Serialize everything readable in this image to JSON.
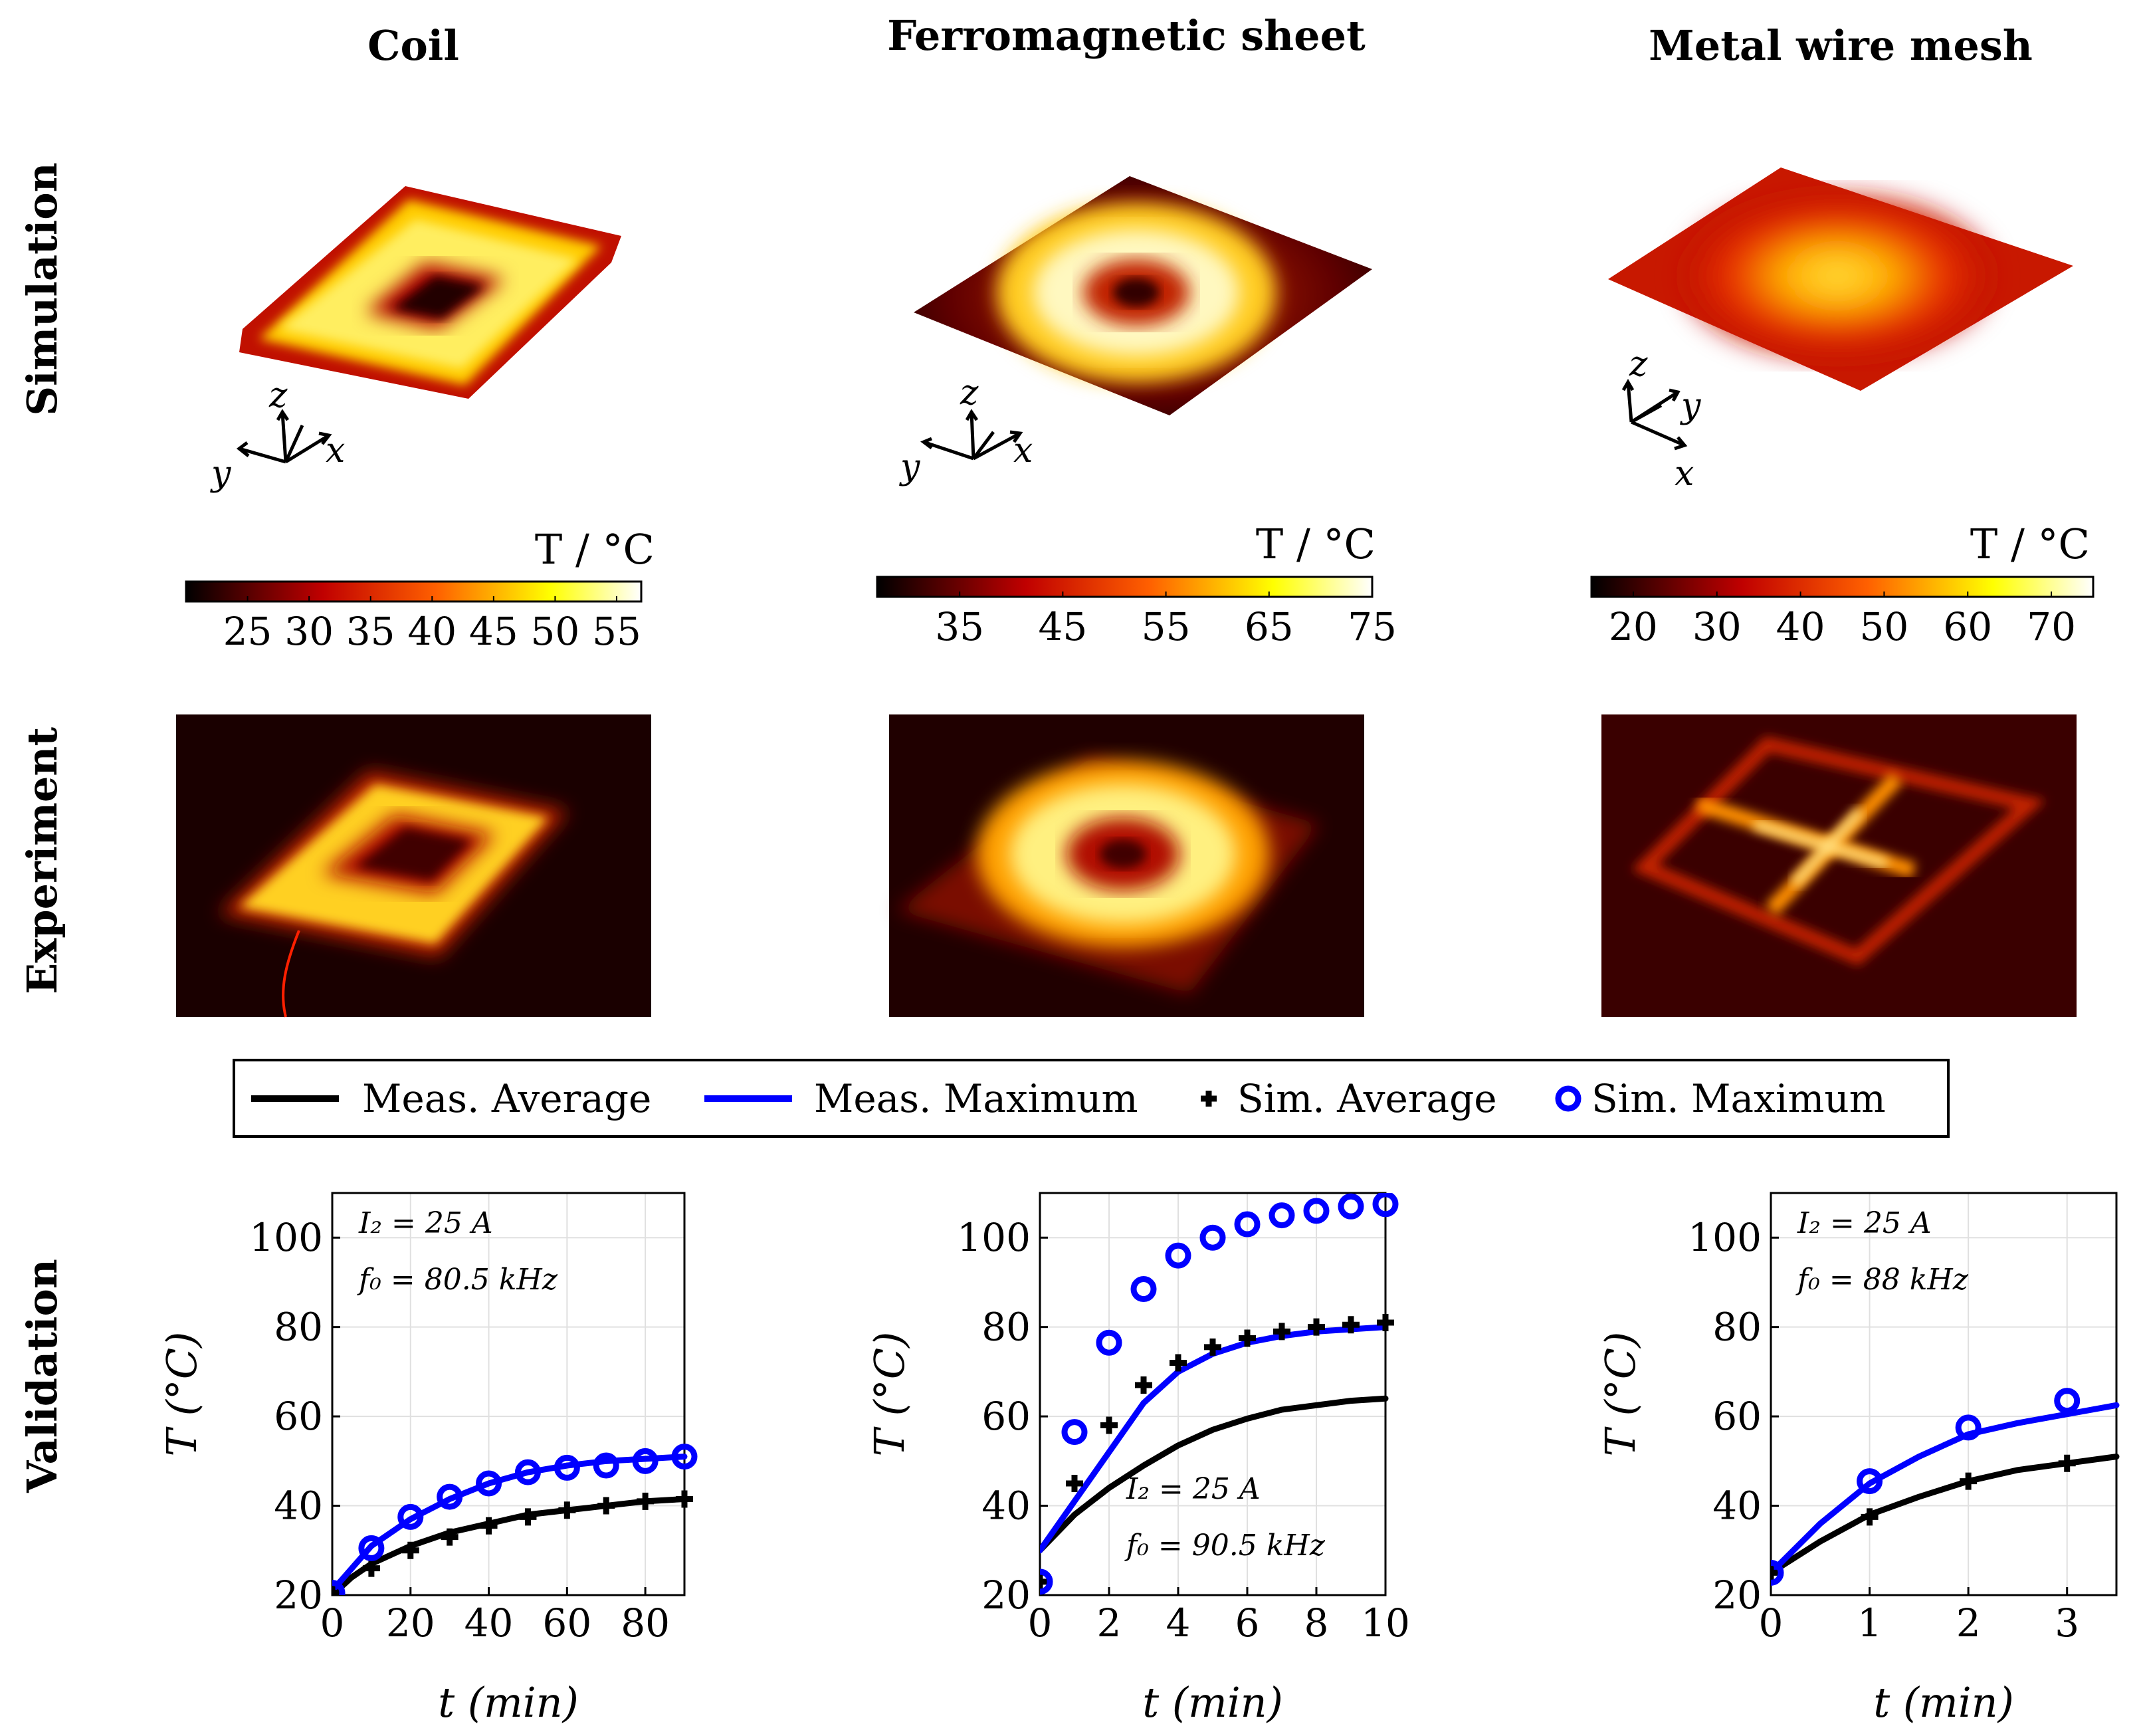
{
  "columns": {
    "coil": "Coil",
    "ferro": "Ferromagnetic sheet",
    "mesh": "Metal wire mesh"
  },
  "rows": {
    "simulation": "Simulation",
    "experiment": "Experiment",
    "validation": "Validation"
  },
  "axis_letters": {
    "x": "x",
    "y": "y",
    "z": "z"
  },
  "colorbars": [
    {
      "title": "T / °C",
      "ticks": [
        "25",
        "30",
        "35",
        "40",
        "45",
        "50",
        "55"
      ],
      "range": [
        20,
        57
      ]
    },
    {
      "title": "T / °C",
      "ticks": [
        "35",
        "45",
        "55",
        "65",
        "75"
      ],
      "range": [
        27,
        75
      ]
    },
    {
      "title": "T / °C",
      "ticks": [
        "20",
        "30",
        "40",
        "50",
        "60",
        "70"
      ],
      "range": [
        15,
        75
      ]
    }
  ],
  "legend": {
    "meas_avg": "Meas. Average",
    "meas_max": "Meas. Maximum",
    "sim_avg": "Sim. Average",
    "sim_max": "Sim. Maximum"
  },
  "colors": {
    "black": "#000000",
    "blue": "#0000ff"
  },
  "chart_data": [
    {
      "type": "line",
      "title": "Coil",
      "xlabel": "t (min)",
      "ylabel": "T (°C)",
      "xlim": [
        0,
        90
      ],
      "ylim": [
        20,
        110
      ],
      "xticks": [
        0,
        20,
        40,
        60,
        80
      ],
      "yticks": [
        20,
        40,
        60,
        80,
        100
      ],
      "annotation": [
        "I₂ = 25 A",
        "f₀ = 80.5 kHz"
      ],
      "series": [
        {
          "name": "Meas. Average",
          "style": "line",
          "color": "#000000",
          "x": [
            0,
            5,
            10,
            20,
            30,
            40,
            50,
            60,
            70,
            80,
            90
          ],
          "y": [
            20,
            24,
            27,
            31,
            34,
            36,
            38,
            39,
            40,
            41,
            41.5
          ]
        },
        {
          "name": "Meas. Maximum",
          "style": "line",
          "color": "#0000ff",
          "x": [
            0,
            5,
            10,
            20,
            30,
            40,
            50,
            60,
            70,
            80,
            90
          ],
          "y": [
            21,
            26,
            31,
            37,
            41.5,
            45,
            47.5,
            49,
            50,
            50.5,
            51
          ]
        },
        {
          "name": "Sim. Average",
          "style": "plus",
          "color": "#000000",
          "x": [
            0,
            10,
            20,
            30,
            40,
            50,
            60,
            70,
            80,
            90
          ],
          "y": [
            20.5,
            26,
            30,
            33,
            35.5,
            37.5,
            39,
            40,
            41,
            41.5
          ]
        },
        {
          "name": "Sim. Maximum",
          "style": "circle",
          "color": "#0000ff",
          "x": [
            0,
            10,
            20,
            30,
            40,
            50,
            60,
            70,
            80,
            90
          ],
          "y": [
            20.5,
            30.5,
            37.5,
            42,
            45,
            47.5,
            48.5,
            49,
            50,
            51
          ]
        }
      ]
    },
    {
      "type": "line",
      "title": "Ferromagnetic sheet",
      "xlabel": "t (min)",
      "ylabel": "T (°C)",
      "xlim": [
        0,
        10
      ],
      "ylim": [
        20,
        110
      ],
      "xticks": [
        0,
        2,
        4,
        6,
        8,
        10
      ],
      "yticks": [
        20,
        40,
        60,
        80,
        100
      ],
      "annotation": [
        "I₂ = 25 A",
        "f₀ = 90.5 kHz"
      ],
      "series": [
        {
          "name": "Meas. Average",
          "style": "line",
          "color": "#000000",
          "x": [
            0,
            1,
            2,
            3,
            4,
            5,
            6,
            7,
            8,
            9,
            10
          ],
          "y": [
            30,
            38,
            44,
            49,
            53.5,
            57,
            59.5,
            61.5,
            62.5,
            63.5,
            64
          ]
        },
        {
          "name": "Meas. Maximum",
          "style": "line",
          "color": "#0000ff",
          "x": [
            0,
            1,
            2,
            3,
            4,
            5,
            6,
            7,
            8,
            9,
            10
          ],
          "y": [
            30,
            41,
            52,
            63,
            70,
            74,
            76.5,
            78,
            79,
            79.5,
            80
          ]
        },
        {
          "name": "Sim. Average",
          "style": "plus",
          "color": "#000000",
          "x": [
            0,
            1,
            2,
            3,
            4,
            5,
            6,
            7,
            8,
            9,
            10
          ],
          "y": [
            23,
            45,
            58,
            67,
            72,
            75.5,
            77.5,
            79,
            80,
            80.5,
            81
          ]
        },
        {
          "name": "Sim. Maximum",
          "style": "circle",
          "color": "#0000ff",
          "x": [
            0,
            1,
            2,
            3,
            4,
            5,
            6,
            7,
            8,
            9,
            10
          ],
          "y": [
            23,
            56.5,
            76.5,
            88.5,
            96,
            100,
            103,
            105,
            106,
            107,
            107.5
          ]
        }
      ]
    },
    {
      "type": "line",
      "title": "Metal wire mesh",
      "xlabel": "t (min)",
      "ylabel": "T (°C)",
      "xlim": [
        0,
        3.5
      ],
      "ylim": [
        20,
        110
      ],
      "xticks": [
        0,
        1,
        2,
        3
      ],
      "yticks": [
        20,
        40,
        60,
        80,
        100
      ],
      "annotation": [
        "I₂ = 25 A",
        "f₀ = 88 kHz"
      ],
      "series": [
        {
          "name": "Meas. Average",
          "style": "line",
          "color": "#000000",
          "x": [
            0,
            0.5,
            1,
            1.5,
            2,
            2.5,
            3,
            3.5
          ],
          "y": [
            25,
            32,
            38,
            42,
            45.5,
            48,
            49.5,
            51
          ]
        },
        {
          "name": "Meas. Maximum",
          "style": "line",
          "color": "#0000ff",
          "x": [
            0,
            0.5,
            1,
            1.5,
            2,
            2.5,
            3,
            3.5
          ],
          "y": [
            25,
            36,
            45,
            51,
            56,
            58.5,
            60.5,
            62.5
          ]
        },
        {
          "name": "Sim. Average",
          "style": "plus",
          "color": "#000000",
          "x": [
            0,
            1,
            2,
            3
          ],
          "y": [
            25,
            37.5,
            45.5,
            49.5
          ]
        },
        {
          "name": "Sim. Maximum",
          "style": "circle",
          "color": "#0000ff",
          "x": [
            0,
            1,
            2,
            3
          ],
          "y": [
            25,
            45.5,
            57.5,
            63.5
          ]
        }
      ]
    }
  ]
}
